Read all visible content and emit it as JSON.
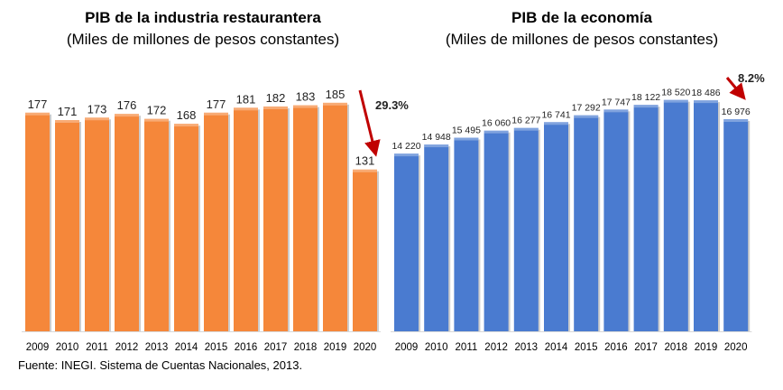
{
  "source": "Fuente: INEGI. Sistema de Cuentas Nacionales, 2013.",
  "chart_data": [
    {
      "type": "bar",
      "title": "PIB de la industria restaurantera",
      "subtitle": "(Miles de millones de pesos constantes)",
      "categories": [
        "2009",
        "2010",
        "2011",
        "2012",
        "2013",
        "2014",
        "2015",
        "2016",
        "2017",
        "2018",
        "2019",
        "2020"
      ],
      "values": [
        177,
        171,
        173,
        176,
        172,
        168,
        177,
        181,
        182,
        183,
        185,
        131
      ],
      "labels": [
        "177",
        "171",
        "173",
        "176",
        "172",
        "168",
        "177",
        "181",
        "182",
        "183",
        "185",
        "131"
      ],
      "annotation": "29.3%",
      "color": "#F5873A",
      "ylim": [
        0,
        190
      ]
    },
    {
      "type": "bar",
      "title": "PIB de la economía",
      "subtitle": "(Miles de millones de pesos constantes)",
      "categories": [
        "2009",
        "2010",
        "2011",
        "2012",
        "2013",
        "2014",
        "2015",
        "2016",
        "2017",
        "2018",
        "2019",
        "2020"
      ],
      "values": [
        14220,
        14948,
        15495,
        16060,
        16277,
        16741,
        17292,
        17747,
        18122,
        18520,
        18486,
        16976
      ],
      "labels": [
        "14 220",
        "14 948",
        "15 495",
        "16 060",
        "16 277",
        "16 741",
        "17 292",
        "17 747",
        "18 122",
        "18 520",
        "18 486",
        "16 976"
      ],
      "annotation": "8.2%",
      "color": "#4A7BD0",
      "ylim": [
        0,
        19000
      ]
    }
  ]
}
